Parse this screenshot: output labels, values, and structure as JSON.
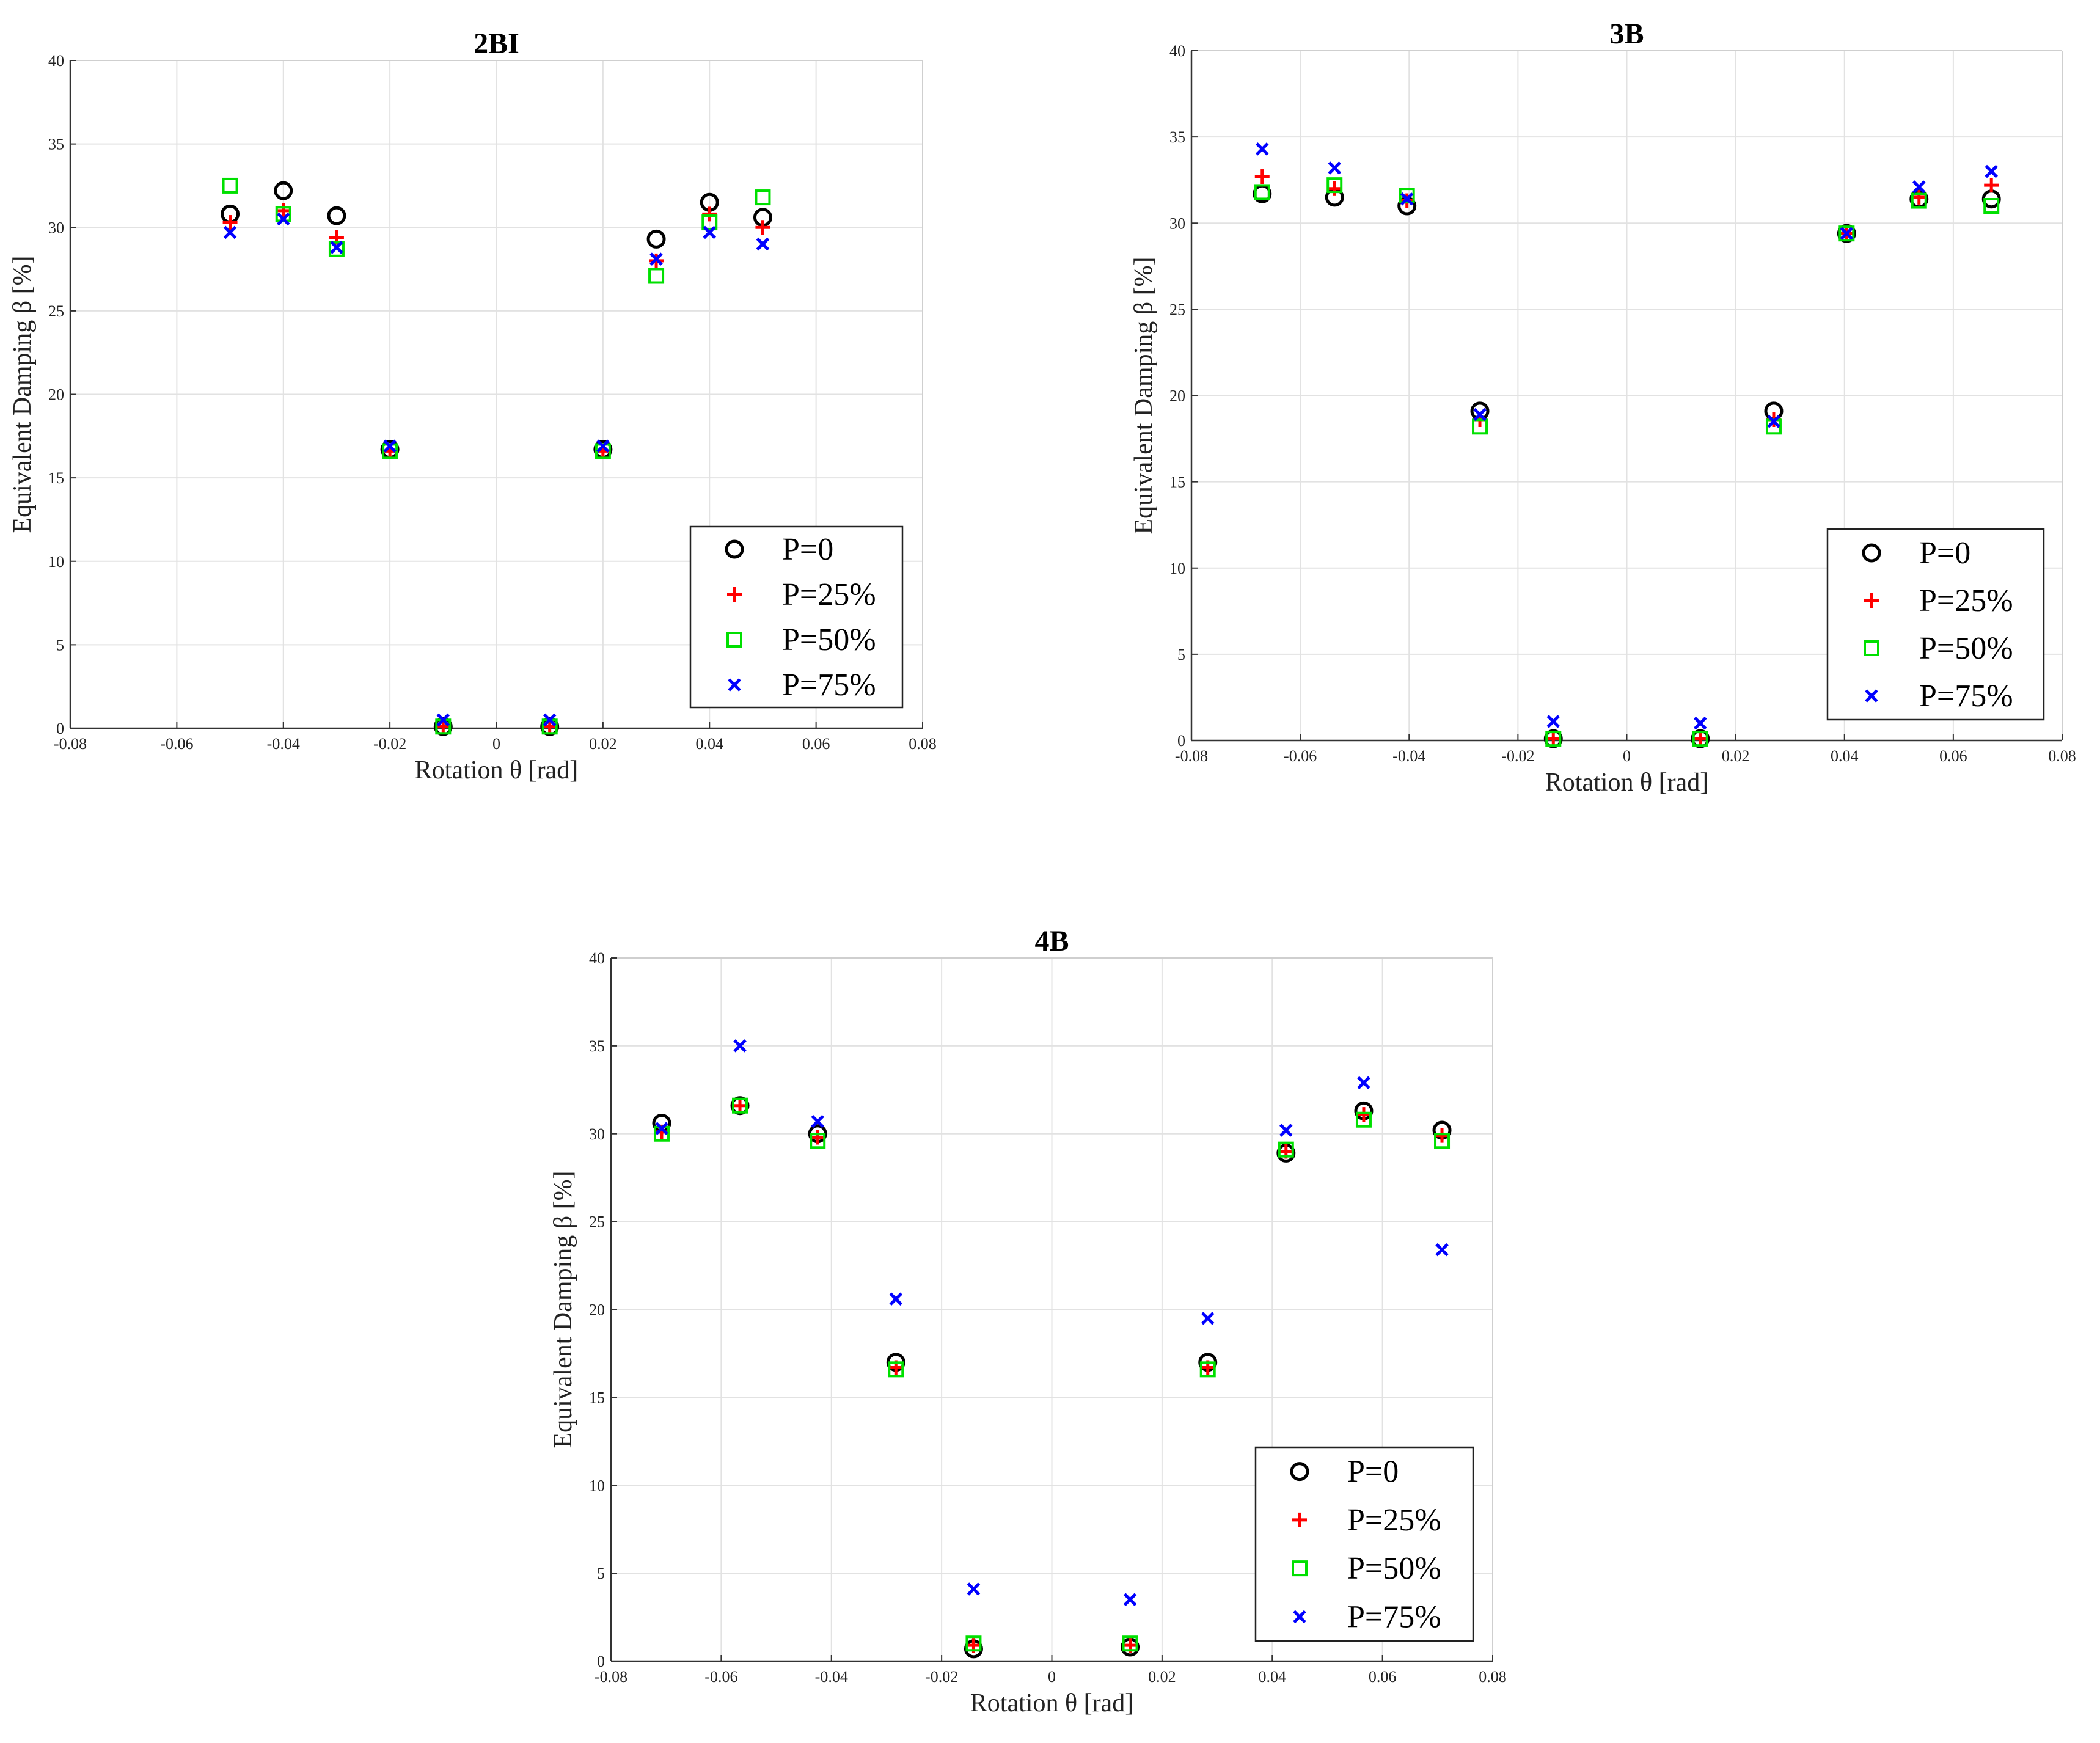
{
  "legend_labels": [
    "P=0",
    "P=25%",
    "P=50%",
    "P=75%"
  ],
  "series_colors": [
    "#000000",
    "#ff0000",
    "#00e000",
    "#0000ff"
  ],
  "series_markers": [
    "circle",
    "plus",
    "square",
    "x"
  ],
  "chart_data": [
    {
      "type": "scatter",
      "title": "2BI",
      "xlabel": "Rotation θ [rad]",
      "ylabel": "Equivalent Damping β [%]",
      "xlim": [
        -0.08,
        0.08
      ],
      "ylim": [
        0,
        40
      ],
      "x_ticks": [
        "-0.08",
        "-0.06",
        "-0.04",
        "-0.02",
        "0",
        "0.02",
        "0.04",
        "0.06",
        "0.08"
      ],
      "y_ticks": [
        "0",
        "5",
        "10",
        "15",
        "20",
        "25",
        "30",
        "35",
        "40"
      ],
      "grid": true,
      "legend_position": "bottom-right",
      "x": [
        -0.05,
        -0.04,
        -0.03,
        -0.02,
        -0.01,
        0.01,
        0.02,
        0.03,
        0.04,
        0.05
      ],
      "series": [
        {
          "name": "P=0",
          "values": [
            30.8,
            32.2,
            30.7,
            16.7,
            0.1,
            0.1,
            16.7,
            29.3,
            31.5,
            30.6
          ]
        },
        {
          "name": "P=25%",
          "values": [
            30.3,
            31.0,
            29.4,
            16.6,
            0.1,
            0.1,
            16.6,
            28.0,
            30.8,
            30.0
          ]
        },
        {
          "name": "P=50%",
          "values": [
            32.5,
            30.8,
            28.7,
            16.6,
            0.1,
            0.1,
            16.6,
            27.1,
            30.3,
            31.8
          ]
        },
        {
          "name": "P=75%",
          "values": [
            29.7,
            30.5,
            28.8,
            16.9,
            0.5,
            0.5,
            16.9,
            28.1,
            29.7,
            29.0
          ]
        }
      ]
    },
    {
      "type": "scatter",
      "title": "3B",
      "xlabel": "Rotation θ [rad]",
      "ylabel": "Equivalent Damping β [%]",
      "xlim": [
        -0.08,
        0.08
      ],
      "ylim": [
        0,
        40
      ],
      "x_ticks": [
        "-0.08",
        "-0.06",
        "-0.04",
        "-0.02",
        "0",
        "0.02",
        "0.04",
        "0.06",
        "0.08"
      ],
      "y_ticks": [
        "0",
        "5",
        "10",
        "15",
        "20",
        "25",
        "30",
        "35",
        "40"
      ],
      "grid": true,
      "legend_position": "bottom-right",
      "x": [
        -0.067,
        -0.0537,
        -0.0404,
        -0.027,
        -0.0135,
        0.0135,
        0.027,
        0.0404,
        0.0537,
        0.067
      ],
      "series": [
        {
          "name": "P=0",
          "values": [
            31.7,
            31.5,
            31.0,
            19.1,
            0.1,
            0.1,
            19.1,
            29.4,
            31.4,
            31.4
          ]
        },
        {
          "name": "P=25%",
          "values": [
            32.7,
            32.0,
            31.3,
            18.6,
            0.1,
            0.1,
            18.6,
            29.4,
            31.5,
            32.2
          ]
        },
        {
          "name": "P=50%",
          "values": [
            31.8,
            32.2,
            31.6,
            18.2,
            0.1,
            0.1,
            18.2,
            29.4,
            31.3,
            31.0
          ]
        },
        {
          "name": "P=75%",
          "values": [
            34.3,
            33.2,
            31.4,
            18.9,
            1.1,
            1.0,
            18.5,
            29.4,
            32.1,
            33.0
          ]
        }
      ]
    },
    {
      "type": "scatter",
      "title": "4B",
      "xlabel": "Rotation θ [rad]",
      "ylabel": "Equivalent Damping β [%]",
      "xlim": [
        -0.08,
        0.08
      ],
      "ylim": [
        0,
        40
      ],
      "x_ticks": [
        "-0.08",
        "-0.06",
        "-0.04",
        "-0.02",
        "0",
        "0.02",
        "0.04",
        "0.06",
        "0.08"
      ],
      "y_ticks": [
        "0",
        "5",
        "10",
        "15",
        "20",
        "25",
        "30",
        "35",
        "40"
      ],
      "grid": true,
      "legend_position": "bottom-right",
      "x": [
        -0.0708,
        -0.0566,
        -0.0425,
        -0.0283,
        -0.0142,
        0.0142,
        0.0283,
        0.0425,
        0.0566,
        0.0708
      ],
      "series": [
        {
          "name": "P=0",
          "values": [
            30.6,
            31.6,
            30.0,
            17.0,
            0.7,
            0.8,
            17.0,
            28.9,
            31.3,
            30.2
          ]
        },
        {
          "name": "P=25%",
          "values": [
            30.1,
            31.6,
            29.8,
            16.7,
            0.9,
            0.9,
            16.7,
            29.0,
            31.1,
            29.9
          ]
        },
        {
          "name": "P=50%",
          "values": [
            30.0,
            31.6,
            29.6,
            16.6,
            1.0,
            1.0,
            16.6,
            29.1,
            30.8,
            29.6
          ]
        },
        {
          "name": "P=75%",
          "values": [
            30.3,
            35.0,
            30.7,
            20.6,
            4.1,
            3.5,
            19.5,
            30.2,
            32.9,
            23.4
          ]
        }
      ]
    }
  ]
}
